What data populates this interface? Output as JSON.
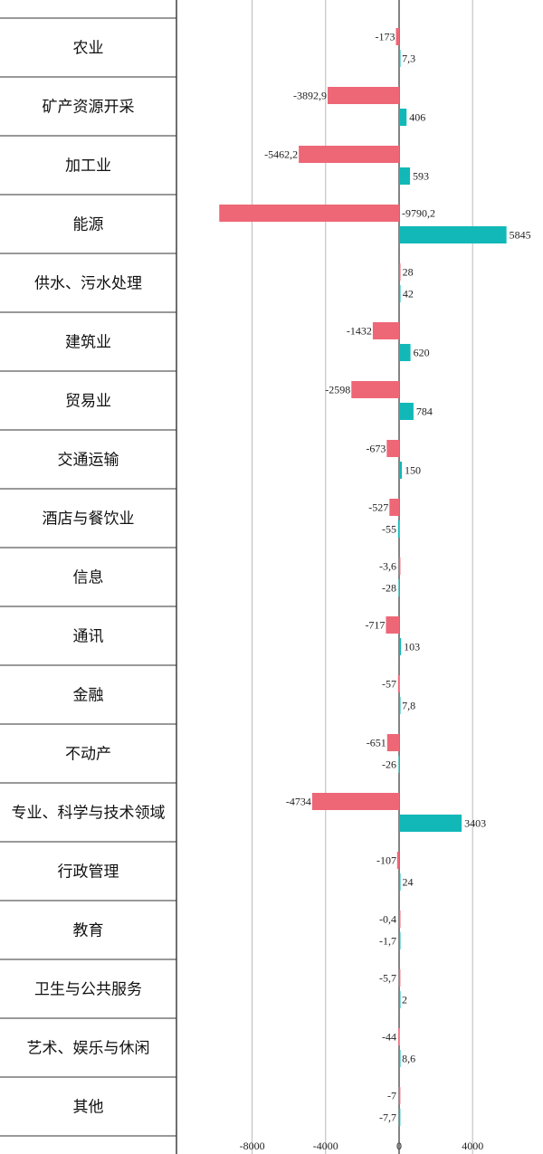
{
  "chart_data": {
    "type": "bar",
    "orientation": "horizontal",
    "categories": [
      "农业",
      "矿产资源开采",
      "加工业",
      "能源",
      "供水、污水处理",
      "建筑业",
      "贸易业",
      "交通运输",
      "酒店与餐饮业",
      "信息",
      "通讯",
      "金融",
      "不动产",
      "专业、科学与技术领域",
      "行政管理",
      "教育",
      "卫生与公共服务",
      "艺术、娱乐与休闲",
      "其他"
    ],
    "series": [
      {
        "color": "#ee6777",
        "values": [
          -173,
          -3892.9,
          -5462.2,
          -9790.2,
          28,
          -1432,
          -2598,
          -673,
          -527,
          -3.6,
          -717,
          -57,
          -651,
          -4734,
          -107,
          -0.4,
          -5.7,
          -44,
          -7
        ],
        "labels": [
          "-173",
          "-3892,9",
          "-5462,2",
          "-9790,2",
          "28",
          "-1432",
          "-2598",
          "-673",
          "-527",
          "-3,6",
          "-717",
          "-57",
          "-651",
          "-4734",
          "-107",
          "-0,4",
          "-5,7",
          "-44",
          "-7"
        ]
      },
      {
        "color": "#12b8b8",
        "values": [
          7.3,
          406,
          593,
          5845,
          42,
          620,
          784,
          150,
          -55,
          -28,
          103,
          7.8,
          -26,
          3403,
          24,
          -1.7,
          2,
          8.6,
          -7.7
        ],
        "labels": [
          "7,3",
          "406",
          "593",
          "5845",
          "42",
          "620",
          "784",
          "150",
          "-55",
          "-28",
          "103",
          "7,8",
          "-26",
          "3403",
          "24",
          "-1,7",
          "2",
          "8,6",
          "-7,7"
        ]
      }
    ],
    "xticks": [
      -8000,
      -4000,
      0,
      4000
    ],
    "xtick_labels": [
      "-8000",
      "-4000",
      "0",
      "4000"
    ],
    "xlim": [
      -10000,
      7000
    ],
    "grid": true
  }
}
